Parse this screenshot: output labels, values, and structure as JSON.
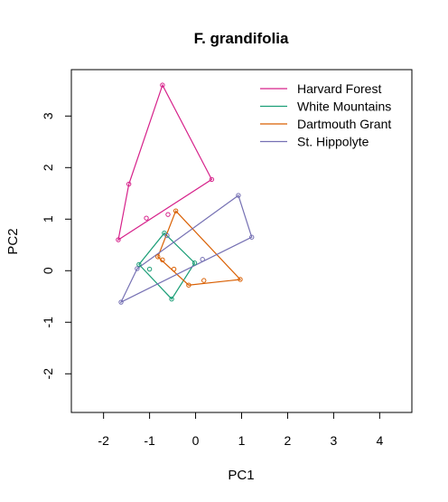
{
  "chart_data": {
    "type": "scatter",
    "title": "F. grandifolia",
    "xlabel": "PC1",
    "ylabel": "PC2",
    "xlim": [
      -2.7,
      4.7
    ],
    "ylim": [
      -2.75,
      3.9
    ],
    "xticks": [
      -2,
      -1,
      0,
      1,
      2,
      3,
      4
    ],
    "yticks": [
      -2,
      -1,
      0,
      1,
      2,
      3
    ],
    "grid": false,
    "legend_position": "top-right",
    "series": [
      {
        "name": "Harvard Forest",
        "color": "#d6218a",
        "points": [
          [
            -0.72,
            3.6
          ],
          [
            -1.45,
            1.68
          ],
          [
            -1.68,
            0.6
          ],
          [
            -1.07,
            1.02
          ],
          [
            -0.6,
            1.09
          ],
          [
            0.35,
            1.77
          ]
        ],
        "hull": [
          [
            -0.72,
            3.6
          ],
          [
            0.35,
            1.77
          ],
          [
            -1.68,
            0.6
          ],
          [
            -1.45,
            1.68
          ]
        ]
      },
      {
        "name": "White Mountains",
        "color": "#1b9e77",
        "points": [
          [
            -0.68,
            0.73
          ],
          [
            -1.23,
            0.12
          ],
          [
            -1.0,
            0.03
          ],
          [
            -0.52,
            -0.55
          ],
          [
            -0.02,
            0.15
          ]
        ],
        "hull": [
          [
            -0.68,
            0.73
          ],
          [
            -0.02,
            0.15
          ],
          [
            -0.52,
            -0.55
          ],
          [
            -1.23,
            0.12
          ]
        ]
      },
      {
        "name": "Dartmouth Grant",
        "color": "#d95f02",
        "points": [
          [
            -0.43,
            1.16
          ],
          [
            -0.82,
            0.27
          ],
          [
            -0.72,
            0.21
          ],
          [
            -0.47,
            0.03
          ],
          [
            -0.15,
            -0.28
          ],
          [
            0.18,
            -0.19
          ],
          [
            0.97,
            -0.17
          ]
        ],
        "hull": [
          [
            -0.43,
            1.16
          ],
          [
            0.97,
            -0.17
          ],
          [
            -0.15,
            -0.28
          ],
          [
            -0.82,
            0.27
          ]
        ]
      },
      {
        "name": "St. Hippolyte",
        "color": "#7570b3",
        "points": [
          [
            0.93,
            1.46
          ],
          [
            1.22,
            0.65
          ],
          [
            0.15,
            0.22
          ],
          [
            -0.62,
            0.68
          ],
          [
            -1.27,
            0.04
          ],
          [
            -1.62,
            -0.61
          ]
        ],
        "hull": [
          [
            0.93,
            1.46
          ],
          [
            1.22,
            0.65
          ],
          [
            -1.62,
            -0.61
          ],
          [
            -1.27,
            0.04
          ]
        ]
      }
    ]
  }
}
